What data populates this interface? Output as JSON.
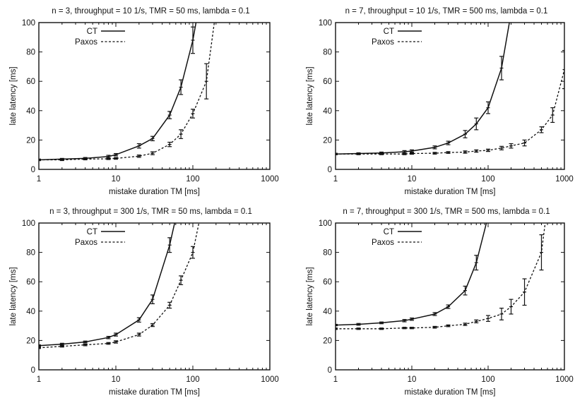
{
  "chart_data": [
    {
      "type": "line",
      "title": "n = 3, throughput = 10 1/s, TMR = 50 ms, lambda = 0.1",
      "xlabel": "mistake duration TM [ms]",
      "ylabel": "late latency [ms]",
      "xscale": "log",
      "xlim": [
        1,
        1000
      ],
      "ylim": [
        0,
        100
      ],
      "xticks": [
        "1",
        "10",
        "100",
        "1000"
      ],
      "yticks": [
        "0",
        "20",
        "40",
        "60",
        "80",
        "100"
      ],
      "legend": "top-left",
      "series": [
        {
          "name": "CT",
          "style": "solid",
          "points": [
            {
              "x": 1,
              "y": 6.5,
              "err": 0.5
            },
            {
              "x": 2,
              "y": 7,
              "err": 0.5
            },
            {
              "x": 4,
              "y": 7.5,
              "err": 0.6
            },
            {
              "x": 8,
              "y": 8.8,
              "err": 0.8
            },
            {
              "x": 10,
              "y": 10,
              "err": 0.8
            },
            {
              "x": 20,
              "y": 16,
              "err": 1.5
            },
            {
              "x": 30,
              "y": 21,
              "err": 1.5
            },
            {
              "x": 50,
              "y": 37,
              "err": 2.5
            },
            {
              "x": 70,
              "y": 56,
              "err": 5
            },
            {
              "x": 100,
              "y": 88,
              "err": 9
            },
            {
              "x": 110,
              "y": 100,
              "err": 0
            }
          ]
        },
        {
          "name": "Paxos",
          "style": "dashed",
          "points": [
            {
              "x": 1,
              "y": 6.5,
              "err": 0.5
            },
            {
              "x": 2,
              "y": 6.5,
              "err": 0.5
            },
            {
              "x": 4,
              "y": 7,
              "err": 0.5
            },
            {
              "x": 8,
              "y": 7.2,
              "err": 0.5
            },
            {
              "x": 10,
              "y": 7.5,
              "err": 0.6
            },
            {
              "x": 20,
              "y": 9,
              "err": 0.8
            },
            {
              "x": 30,
              "y": 11,
              "err": 1
            },
            {
              "x": 50,
              "y": 17,
              "err": 1.5
            },
            {
              "x": 70,
              "y": 24,
              "err": 3
            },
            {
              "x": 100,
              "y": 38,
              "err": 3
            },
            {
              "x": 150,
              "y": 60,
              "err": 12
            },
            {
              "x": 190,
              "y": 100,
              "err": 0
            }
          ]
        }
      ]
    },
    {
      "type": "line",
      "title": "n = 7, throughput = 10 1/s, TMR = 500 ms, lambda = 0.1",
      "xlabel": "mistake duration TM [ms]",
      "ylabel": "late latency [ms]",
      "xscale": "log",
      "xlim": [
        1,
        1000
      ],
      "ylim": [
        0,
        100
      ],
      "xticks": [
        "1",
        "10",
        "100",
        "1000"
      ],
      "yticks": [
        "0",
        "20",
        "40",
        "60",
        "80",
        "100"
      ],
      "legend": "top-left",
      "series": [
        {
          "name": "CT",
          "style": "solid",
          "points": [
            {
              "x": 1,
              "y": 10.5,
              "err": 0.5
            },
            {
              "x": 2,
              "y": 10.8,
              "err": 0.5
            },
            {
              "x": 4,
              "y": 11.2,
              "err": 0.6
            },
            {
              "x": 8,
              "y": 12,
              "err": 0.8
            },
            {
              "x": 10,
              "y": 12.5,
              "err": 0.8
            },
            {
              "x": 20,
              "y": 15,
              "err": 1
            },
            {
              "x": 30,
              "y": 18,
              "err": 1.2
            },
            {
              "x": 50,
              "y": 24,
              "err": 2.5
            },
            {
              "x": 70,
              "y": 31,
              "err": 4
            },
            {
              "x": 100,
              "y": 42,
              "err": 4
            },
            {
              "x": 150,
              "y": 69,
              "err": 8
            },
            {
              "x": 190,
              "y": 100,
              "err": 0
            }
          ]
        },
        {
          "name": "Paxos",
          "style": "dashed",
          "points": [
            {
              "x": 1,
              "y": 10.5,
              "err": 0.5
            },
            {
              "x": 2,
              "y": 10.5,
              "err": 0.5
            },
            {
              "x": 4,
              "y": 10.5,
              "err": 0.5
            },
            {
              "x": 8,
              "y": 10.5,
              "err": 0.5
            },
            {
              "x": 10,
              "y": 10.8,
              "err": 0.5
            },
            {
              "x": 20,
              "y": 11,
              "err": 0.6
            },
            {
              "x": 30,
              "y": 11.5,
              "err": 0.6
            },
            {
              "x": 50,
              "y": 11.8,
              "err": 0.8
            },
            {
              "x": 70,
              "y": 12.5,
              "err": 0.8
            },
            {
              "x": 100,
              "y": 13,
              "err": 0.8
            },
            {
              "x": 150,
              "y": 14.5,
              "err": 1.2
            },
            {
              "x": 200,
              "y": 16,
              "err": 1.5
            },
            {
              "x": 300,
              "y": 18,
              "err": 2
            },
            {
              "x": 500,
              "y": 27,
              "err": 2
            },
            {
              "x": 700,
              "y": 37,
              "err": 5
            },
            {
              "x": 1000,
              "y": 68,
              "err": 13
            }
          ]
        }
      ]
    },
    {
      "type": "line",
      "title": "n = 3, throughput = 300 1/s, TMR = 50 ms, lambda = 0.1",
      "xlabel": "mistake duration TM [ms]",
      "ylabel": "late latency [ms]",
      "xscale": "log",
      "xlim": [
        1,
        1000
      ],
      "ylim": [
        0,
        100
      ],
      "xticks": [
        "1",
        "10",
        "100",
        "1000"
      ],
      "yticks": [
        "0",
        "20",
        "40",
        "60",
        "80",
        "100"
      ],
      "legend": "top-left",
      "series": [
        {
          "name": "CT",
          "style": "solid",
          "points": [
            {
              "x": 1,
              "y": 16.5,
              "err": 0.5
            },
            {
              "x": 2,
              "y": 17.5,
              "err": 0.6
            },
            {
              "x": 4,
              "y": 19,
              "err": 0.6
            },
            {
              "x": 8,
              "y": 22,
              "err": 0.8
            },
            {
              "x": 10,
              "y": 24,
              "err": 1
            },
            {
              "x": 20,
              "y": 34,
              "err": 1.5
            },
            {
              "x": 30,
              "y": 48,
              "err": 3
            },
            {
              "x": 50,
              "y": 85,
              "err": 5
            },
            {
              "x": 58,
              "y": 100,
              "err": 0
            }
          ]
        },
        {
          "name": "Paxos",
          "style": "dashed",
          "points": [
            {
              "x": 1,
              "y": 15,
              "err": 0.5
            },
            {
              "x": 2,
              "y": 16,
              "err": 0.5
            },
            {
              "x": 4,
              "y": 17,
              "err": 0.6
            },
            {
              "x": 8,
              "y": 18,
              "err": 0.6
            },
            {
              "x": 10,
              "y": 19,
              "err": 0.8
            },
            {
              "x": 20,
              "y": 24,
              "err": 1
            },
            {
              "x": 30,
              "y": 30.5,
              "err": 1
            },
            {
              "x": 50,
              "y": 44,
              "err": 2
            },
            {
              "x": 70,
              "y": 61,
              "err": 3
            },
            {
              "x": 100,
              "y": 80,
              "err": 4
            },
            {
              "x": 120,
              "y": 100,
              "err": 0
            }
          ]
        }
      ]
    },
    {
      "type": "line",
      "title": "n = 7, throughput = 300 1/s, TMR = 500 ms, lambda = 0.1",
      "xlabel": "mistake duration TM [ms]",
      "ylabel": "late latency [ms]",
      "xscale": "log",
      "xlim": [
        1,
        1000
      ],
      "ylim": [
        0,
        100
      ],
      "xticks": [
        "1",
        "10",
        "100",
        "1000"
      ],
      "yticks": [
        "0",
        "20",
        "40",
        "60",
        "80",
        "100"
      ],
      "legend": "top-left",
      "series": [
        {
          "name": "CT",
          "style": "solid",
          "points": [
            {
              "x": 1,
              "y": 30.5,
              "err": 0.5
            },
            {
              "x": 2,
              "y": 31,
              "err": 0.6
            },
            {
              "x": 4,
              "y": 32,
              "err": 0.6
            },
            {
              "x": 8,
              "y": 33.5,
              "err": 0.8
            },
            {
              "x": 10,
              "y": 34.5,
              "err": 0.8
            },
            {
              "x": 20,
              "y": 38,
              "err": 1
            },
            {
              "x": 30,
              "y": 43,
              "err": 1.2
            },
            {
              "x": 50,
              "y": 54,
              "err": 3
            },
            {
              "x": 70,
              "y": 73,
              "err": 5
            },
            {
              "x": 95,
              "y": 100,
              "err": 0
            }
          ]
        },
        {
          "name": "Paxos",
          "style": "dashed",
          "points": [
            {
              "x": 1,
              "y": 28,
              "err": 0.5
            },
            {
              "x": 2,
              "y": 28,
              "err": 0.5
            },
            {
              "x": 4,
              "y": 28,
              "err": 0.5
            },
            {
              "x": 8,
              "y": 28.5,
              "err": 0.5
            },
            {
              "x": 10,
              "y": 28.5,
              "err": 0.5
            },
            {
              "x": 20,
              "y": 29,
              "err": 0.6
            },
            {
              "x": 30,
              "y": 30,
              "err": 0.6
            },
            {
              "x": 50,
              "y": 31,
              "err": 0.8
            },
            {
              "x": 70,
              "y": 33,
              "err": 1
            },
            {
              "x": 100,
              "y": 35,
              "err": 2
            },
            {
              "x": 150,
              "y": 38,
              "err": 4
            },
            {
              "x": 200,
              "y": 43,
              "err": 5
            },
            {
              "x": 300,
              "y": 53,
              "err": 9
            },
            {
              "x": 500,
              "y": 80,
              "err": 12
            },
            {
              "x": 560,
              "y": 100,
              "err": 0
            }
          ]
        }
      ]
    }
  ]
}
